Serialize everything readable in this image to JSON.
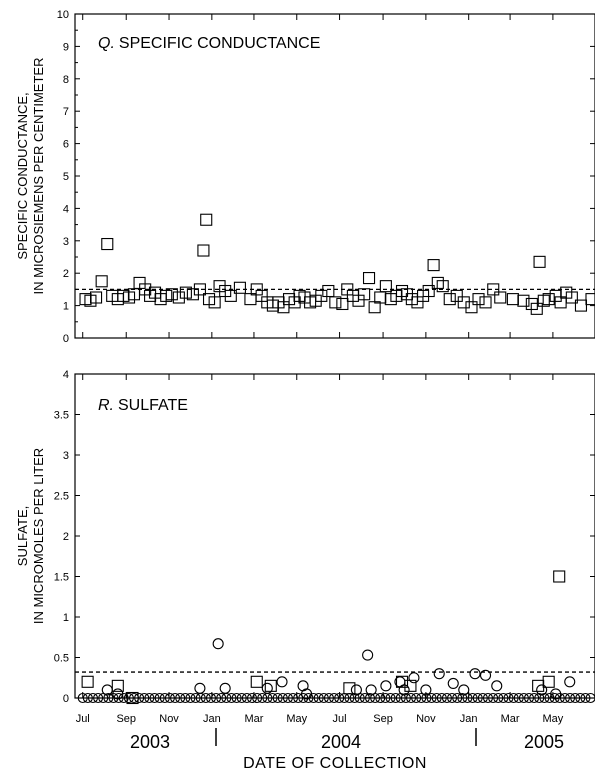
{
  "chart_data": [
    {
      "type": "scatter",
      "panel_letter": "Q.",
      "title": "SPECIFIC CONDUCTANCE",
      "ylabel_line1": "SPECIFIC CONDUCTANCE,",
      "ylabel_line2": "IN MICROSIEMENS PER CENTIMETER",
      "ylim": [
        0,
        10
      ],
      "yticks": [
        0,
        1,
        2,
        3,
        4,
        5,
        6,
        7,
        8,
        9,
        10
      ],
      "reference_line": 1.5,
      "series": [
        {
          "marker": "square",
          "points": [
            [
              "2003-07-05",
              1.2
            ],
            [
              "2003-07-12",
              1.15
            ],
            [
              "2003-07-20",
              1.25
            ],
            [
              "2003-07-28",
              1.75
            ],
            [
              "2003-08-05",
              2.9
            ],
            [
              "2003-08-12",
              1.3
            ],
            [
              "2003-08-20",
              1.2
            ],
            [
              "2003-08-28",
              1.3
            ],
            [
              "2003-09-05",
              1.25
            ],
            [
              "2003-09-12",
              1.35
            ],
            [
              "2003-09-20",
              1.7
            ],
            [
              "2003-09-28",
              1.5
            ],
            [
              "2003-10-05",
              1.3
            ],
            [
              "2003-10-12",
              1.4
            ],
            [
              "2003-10-20",
              1.2
            ],
            [
              "2003-10-28",
              1.3
            ],
            [
              "2003-11-05",
              1.35
            ],
            [
              "2003-11-15",
              1.25
            ],
            [
              "2003-11-25",
              1.4
            ],
            [
              "2003-12-05",
              1.35
            ],
            [
              "2003-12-15",
              1.5
            ],
            [
              "2003-12-20",
              2.7
            ],
            [
              "2003-12-24",
              3.65
            ],
            [
              "2003-12-28",
              1.2
            ],
            [
              "2004-01-05",
              1.1
            ],
            [
              "2004-01-12",
              1.6
            ],
            [
              "2004-01-20",
              1.45
            ],
            [
              "2004-01-28",
              1.3
            ],
            [
              "2004-02-10",
              1.55
            ],
            [
              "2004-02-25",
              1.2
            ],
            [
              "2004-03-05",
              1.5
            ],
            [
              "2004-03-12",
              1.3
            ],
            [
              "2004-03-20",
              1.1
            ],
            [
              "2004-03-28",
              1.0
            ],
            [
              "2004-04-05",
              1.1
            ],
            [
              "2004-04-12",
              0.95
            ],
            [
              "2004-04-20",
              1.2
            ],
            [
              "2004-04-28",
              1.1
            ],
            [
              "2004-05-05",
              1.3
            ],
            [
              "2004-05-12",
              1.25
            ],
            [
              "2004-05-20",
              1.1
            ],
            [
              "2004-05-28",
              1.15
            ],
            [
              "2004-06-05",
              1.3
            ],
            [
              "2004-06-15",
              1.45
            ],
            [
              "2004-06-25",
              1.1
            ],
            [
              "2004-07-05",
              1.05
            ],
            [
              "2004-07-12",
              1.5
            ],
            [
              "2004-07-20",
              1.3
            ],
            [
              "2004-07-28",
              1.15
            ],
            [
              "2004-08-05",
              1.35
            ],
            [
              "2004-08-12",
              1.85
            ],
            [
              "2004-08-20",
              0.95
            ],
            [
              "2004-08-28",
              1.25
            ],
            [
              "2004-09-05",
              1.6
            ],
            [
              "2004-09-12",
              1.2
            ],
            [
              "2004-09-20",
              1.3
            ],
            [
              "2004-09-28",
              1.45
            ],
            [
              "2004-10-05",
              1.35
            ],
            [
              "2004-10-12",
              1.2
            ],
            [
              "2004-10-20",
              1.1
            ],
            [
              "2004-10-28",
              1.3
            ],
            [
              "2004-11-05",
              1.45
            ],
            [
              "2004-11-12",
              2.25
            ],
            [
              "2004-11-18",
              1.7
            ],
            [
              "2004-11-25",
              1.6
            ],
            [
              "2004-12-05",
              1.2
            ],
            [
              "2004-12-15",
              1.3
            ],
            [
              "2004-12-25",
              1.1
            ],
            [
              "2005-01-05",
              0.95
            ],
            [
              "2005-01-15",
              1.2
            ],
            [
              "2005-01-25",
              1.1
            ],
            [
              "2005-02-05",
              1.5
            ],
            [
              "2005-02-15",
              1.25
            ],
            [
              "2005-03-05",
              1.2
            ],
            [
              "2005-03-20",
              1.15
            ],
            [
              "2005-04-01",
              1.05
            ],
            [
              "2005-04-08",
              0.9
            ],
            [
              "2005-04-12",
              2.35
            ],
            [
              "2005-04-18",
              1.15
            ],
            [
              "2005-04-25",
              1.2
            ],
            [
              "2005-05-05",
              1.3
            ],
            [
              "2005-05-12",
              1.1
            ],
            [
              "2005-05-20",
              1.4
            ],
            [
              "2005-05-28",
              1.25
            ],
            [
              "2005-06-10",
              1.0
            ],
            [
              "2005-06-25",
              1.2
            ]
          ]
        }
      ]
    },
    {
      "type": "scatter",
      "panel_letter": "R.",
      "title": "SULFATE",
      "ylabel_line1": "SULFATE,",
      "ylabel_line2": "IN MICROMOLES PER LITER",
      "ylim": [
        0,
        4
      ],
      "yticks": [
        "0",
        "0.5",
        "1",
        "1.5",
        "2",
        "2.5",
        "3",
        "3.5",
        "4"
      ],
      "reference_line": 0.32,
      "series": [
        {
          "marker": "square",
          "points": [
            [
              "2003-07-08",
              0.2
            ],
            [
              "2003-08-20",
              0.15
            ],
            [
              "2003-09-10",
              0.0
            ],
            [
              "2004-03-05",
              0.2
            ],
            [
              "2004-03-25",
              0.15
            ],
            [
              "2004-07-15",
              0.12
            ],
            [
              "2004-09-28",
              0.2
            ],
            [
              "2004-10-10",
              0.15
            ],
            [
              "2005-04-10",
              0.15
            ],
            [
              "2005-04-25",
              0.2
            ],
            [
              "2005-05-10",
              1.5
            ]
          ]
        },
        {
          "marker": "circle",
          "points": [
            [
              "2003-08-05",
              0.1
            ],
            [
              "2003-08-20",
              0.05
            ],
            [
              "2003-12-15",
              0.12
            ],
            [
              "2004-01-10",
              0.67
            ],
            [
              "2004-01-20",
              0.12
            ],
            [
              "2004-03-20",
              0.12
            ],
            [
              "2004-04-10",
              0.2
            ],
            [
              "2004-05-10",
              0.15
            ],
            [
              "2004-05-15",
              0.05
            ],
            [
              "2004-07-25",
              0.1
            ],
            [
              "2004-08-10",
              0.53
            ],
            [
              "2004-08-15",
              0.1
            ],
            [
              "2004-09-05",
              0.15
            ],
            [
              "2004-09-25",
              0.2
            ],
            [
              "2004-10-01",
              0.1
            ],
            [
              "2004-10-15",
              0.25
            ],
            [
              "2004-11-01",
              0.1
            ],
            [
              "2004-11-20",
              0.3
            ],
            [
              "2004-12-10",
              0.18
            ],
            [
              "2004-12-25",
              0.1
            ],
            [
              "2005-01-10",
              0.3
            ],
            [
              "2005-01-25",
              0.28
            ],
            [
              "2005-02-10",
              0.15
            ],
            [
              "2005-04-15",
              0.1
            ],
            [
              "2005-05-05",
              0.05
            ],
            [
              "2005-05-25",
              0.2
            ]
          ]
        }
      ],
      "zero_value_dates_from": "2003-07-01",
      "zero_value_dates_to": "2005-07-01"
    }
  ],
  "xaxis": {
    "month_ticks": [
      "Jul",
      "Sep",
      "Nov",
      "Jan",
      "Mar",
      "May",
      "Jul",
      "Sep",
      "Nov",
      "Jan",
      "Mar",
      "May"
    ],
    "years": [
      "2003",
      "2004",
      "2005"
    ],
    "title": "DATE OF COLLECTION",
    "range": [
      "2003-06-20",
      "2005-06-30"
    ]
  }
}
